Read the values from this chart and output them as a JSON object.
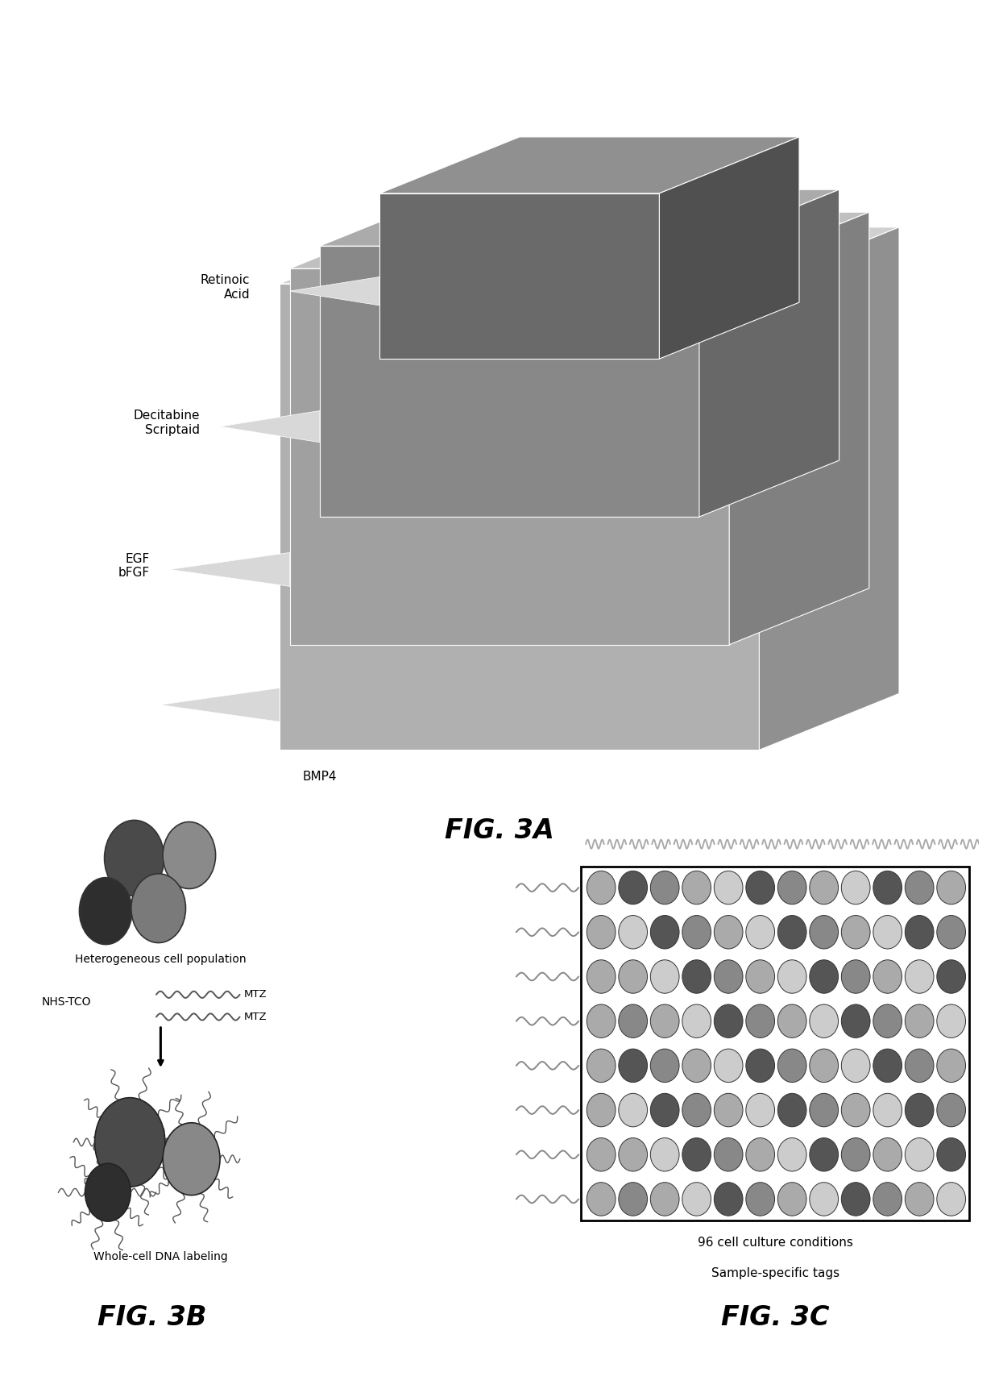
{
  "bg_color": "#ffffff",
  "caption_3a": "FIG. 3A",
  "caption_3b": "FIG. 3B",
  "caption_3c": "FIG. 3C",
  "fig3b_title1": "Heterogeneous cell population",
  "fig3b_label1": "NHS-TCO",
  "fig3b_mtz1": "MTZ",
  "fig3b_mtz2": "MTZ",
  "fig3b_title2": "Whole-cell DNA labeling",
  "fig3c_title1": "96 cell culture conditions",
  "fig3c_title2": "Sample-specific tags",
  "layer_colors": {
    "bmp4_front": "#b0b0b0",
    "bmp4_top": "#d0d0d0",
    "bmp4_side": "#909090",
    "egf_front": "#a0a0a0",
    "egf_top": "#c0c0c0",
    "egf_side": "#808080",
    "dec_front": "#888888",
    "dec_top": "#ababab",
    "dec_side": "#686868",
    "ret_front": "#6a6a6a",
    "ret_top": "#909090",
    "ret_side": "#505050"
  },
  "tab_color": "#d8d8d8",
  "dark_gray": "#555555",
  "med_gray": "#909090",
  "light_gray": "#bbbbbb",
  "very_light_gray": "#e0e0e0"
}
